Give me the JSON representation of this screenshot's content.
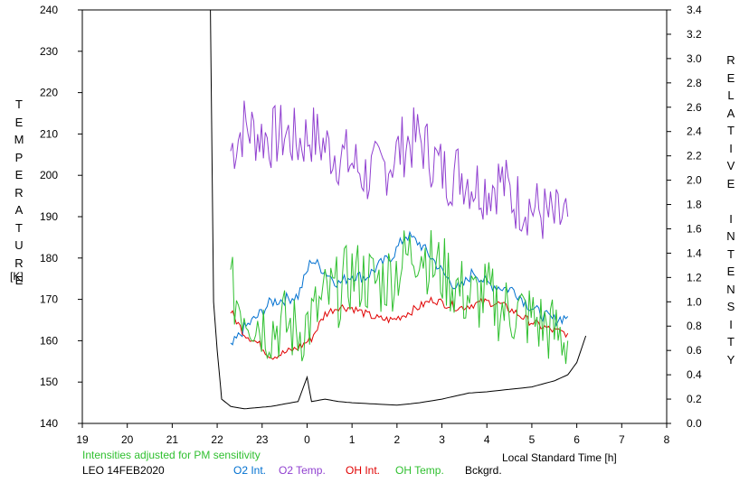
{
  "chart_data": {
    "type": "line",
    "left_axis_label_letters": [
      "T",
      "E",
      "M",
      "P",
      "E",
      "R",
      "A",
      "T",
      "U",
      "R",
      "E"
    ],
    "left_axis_unit": "[K]",
    "right_axis_label_letters": [
      "R",
      "E",
      "L",
      "A",
      "T",
      "I",
      "V",
      "E",
      "",
      "I",
      "N",
      "T",
      "E",
      "N",
      "S",
      "I",
      "T",
      "Y"
    ],
    "xlabel": "Local Standard Time [h]",
    "note": "Intensities adjusted for PM sensitivity",
    "station_date": "LEO 14FEB2020",
    "x_ticks": [
      "19",
      "20",
      "21",
      "22",
      "23",
      "0",
      "1",
      "2",
      "3",
      "4",
      "5",
      "6",
      "7",
      "8"
    ],
    "x_range": [
      19,
      32
    ],
    "ylim_left": [
      140,
      240
    ],
    "y_ticks_left": [
      140,
      150,
      160,
      170,
      180,
      190,
      200,
      210,
      220,
      230,
      240
    ],
    "ylim_right": [
      0,
      3.4
    ],
    "y_ticks_right": [
      "0.0",
      "0.2",
      "0.4",
      "0.6",
      "0.8",
      "1.0",
      "1.2",
      "1.4",
      "1.6",
      "1.8",
      "2.0",
      "2.2",
      "2.4",
      "2.6",
      "2.8",
      "3.0",
      "3.2",
      "3.4"
    ],
    "legend": [
      {
        "label": "O2 Int.",
        "color": "#0070d0"
      },
      {
        "label": "O2 Temp.",
        "color": "#9040d0"
      },
      {
        "label": "OH Int.",
        "color": "#e00000"
      },
      {
        "label": "OH Temp.",
        "color": "#30c030"
      },
      {
        "label": "Bckgrd.",
        "color": "#000000"
      }
    ],
    "series": [
      {
        "name": "O2 Temp.",
        "axis": "left",
        "color": "#9040d0",
        "x": [
          22.3,
          22.6,
          22.9,
          23.2,
          23.5,
          23.8,
          24.1,
          24.4,
          24.7,
          25.0,
          25.3,
          25.6,
          25.9,
          26.2,
          26.5,
          26.8,
          27.1,
          27.4,
          27.7,
          28.0,
          28.3,
          28.6,
          28.9,
          29.2,
          29.5,
          29.8
        ],
        "y": [
          206,
          212,
          210,
          209,
          210,
          208,
          210,
          207,
          205,
          203,
          200,
          201,
          204,
          208,
          209,
          204,
          200,
          201,
          198,
          197,
          199,
          194,
          193,
          191,
          189,
          190
        ]
      },
      {
        "name": "O2 Int.",
        "axis": "right",
        "color": "#0070d0",
        "x": [
          22.3,
          22.6,
          22.9,
          23.2,
          23.5,
          23.8,
          24.1,
          24.4,
          24.7,
          25.0,
          25.3,
          25.6,
          25.9,
          26.2,
          26.5,
          26.8,
          27.1,
          27.4,
          27.7,
          28.0,
          28.3,
          28.6,
          28.9,
          29.2,
          29.5,
          29.8
        ],
        "y": [
          0.62,
          0.78,
          0.88,
          1.0,
          1.02,
          1.05,
          1.35,
          1.25,
          1.15,
          1.22,
          1.2,
          1.3,
          1.38,
          1.55,
          1.48,
          1.35,
          1.2,
          1.1,
          1.25,
          1.15,
          1.12,
          1.1,
          0.98,
          0.9,
          0.85,
          0.88
        ]
      },
      {
        "name": "OH Int.",
        "axis": "right",
        "color": "#e00000",
        "x": [
          22.3,
          22.6,
          22.9,
          23.2,
          23.5,
          23.8,
          24.1,
          24.4,
          24.7,
          25.0,
          25.3,
          25.6,
          25.9,
          26.2,
          26.5,
          26.8,
          27.1,
          27.4,
          27.7,
          28.0,
          28.3,
          28.6,
          28.9,
          29.2,
          29.5,
          29.8
        ],
        "y": [
          0.92,
          0.74,
          0.66,
          0.55,
          0.58,
          0.62,
          0.7,
          0.9,
          0.96,
          0.95,
          0.9,
          0.86,
          0.85,
          0.9,
          0.96,
          1.02,
          0.98,
          0.95,
          0.98,
          1.0,
          0.98,
          0.92,
          0.85,
          0.8,
          0.76,
          0.74
        ]
      },
      {
        "name": "OH Temp.",
        "axis": "left",
        "color": "#30c030",
        "x": [
          22.3,
          22.6,
          22.9,
          23.2,
          23.5,
          23.8,
          24.1,
          24.4,
          24.7,
          25.0,
          25.3,
          25.6,
          25.9,
          26.2,
          26.5,
          26.8,
          27.1,
          27.4,
          27.7,
          28.0,
          28.3,
          28.6,
          28.9,
          29.2,
          29.5,
          29.8
        ],
        "y": [
          172,
          168,
          165,
          163,
          164,
          162,
          165,
          170,
          172,
          176,
          175,
          174,
          176,
          180,
          183,
          178,
          176,
          172,
          170,
          171,
          168,
          167,
          166,
          164,
          162,
          160
        ]
      },
      {
        "name": "Bckgrd.",
        "axis": "right",
        "color": "#000000",
        "x": [
          21.85,
          21.92,
          22.0,
          22.1,
          22.3,
          22.6,
          22.9,
          23.2,
          23.5,
          23.8,
          24.0,
          24.1,
          24.4,
          24.7,
          25.0,
          25.5,
          26.0,
          26.5,
          27.0,
          27.6,
          28.0,
          28.5,
          29.0,
          29.5,
          29.8,
          30.0,
          30.2
        ],
        "y": [
          3.4,
          1.0,
          0.6,
          0.2,
          0.14,
          0.12,
          0.13,
          0.14,
          0.16,
          0.18,
          0.38,
          0.18,
          0.2,
          0.18,
          0.17,
          0.16,
          0.15,
          0.17,
          0.2,
          0.25,
          0.26,
          0.28,
          0.3,
          0.35,
          0.4,
          0.5,
          0.72
        ]
      }
    ]
  }
}
